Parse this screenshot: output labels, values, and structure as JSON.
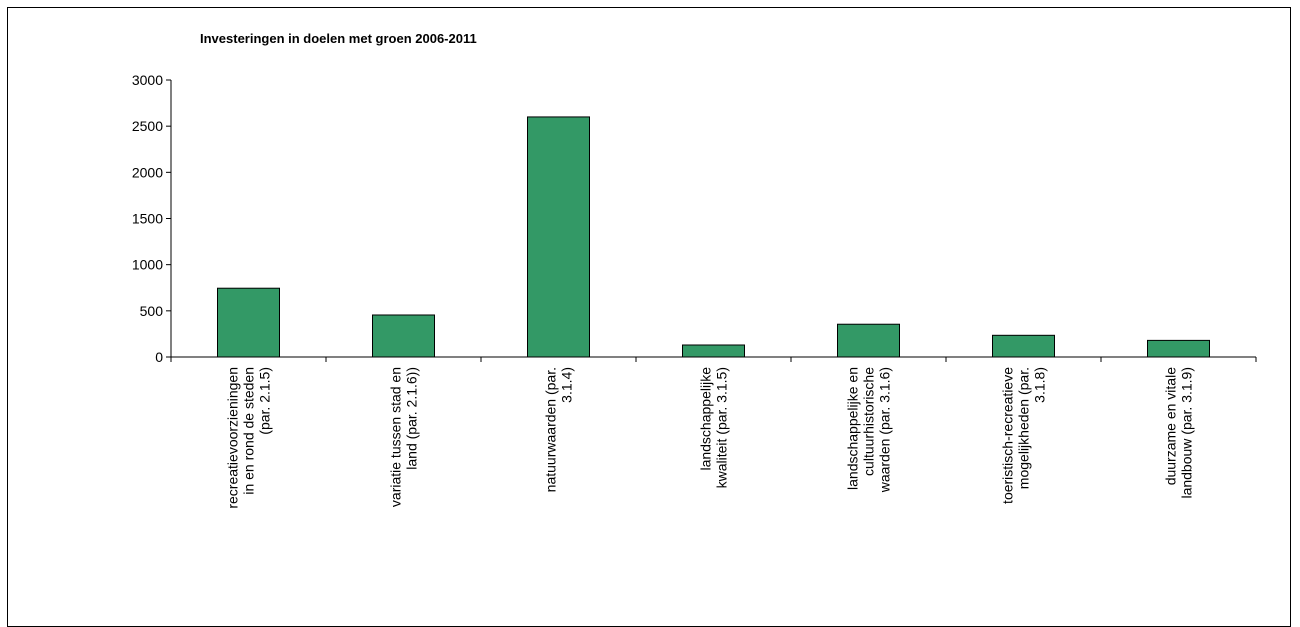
{
  "chart_data": {
    "type": "bar",
    "title": "Investeringen in doelen met groen 2006-2011",
    "xlabel": "",
    "ylabel": "",
    "ylim": [
      0,
      3000
    ],
    "yticks": [
      0,
      500,
      1000,
      1500,
      2000,
      2500,
      3000
    ],
    "grid": false,
    "legend": "none",
    "bar_color": "#339966",
    "categories": [
      [
        "recreatievoorzieningen",
        "in en rond de steden",
        "(par. 2.1.5)"
      ],
      [
        "variatie tussen stad en",
        "land (par. 2.1.6))"
      ],
      [
        "natuurwaarden (par.",
        "3.1.4)"
      ],
      [
        "landschappelijke",
        "kwaliteit (par. 3.1.5)"
      ],
      [
        "landschappelijke en",
        "cultuurhistorische",
        "waarden (par. 3.1.6)"
      ],
      [
        "toeristisch-recreatieve",
        "mogelijkheden (par.",
        "3.1.8)"
      ],
      [
        "duurzame en vitale",
        "landbouw (par. 3.1.9)"
      ]
    ],
    "values": [
      745,
      455,
      2600,
      130,
      355,
      235,
      180
    ]
  }
}
